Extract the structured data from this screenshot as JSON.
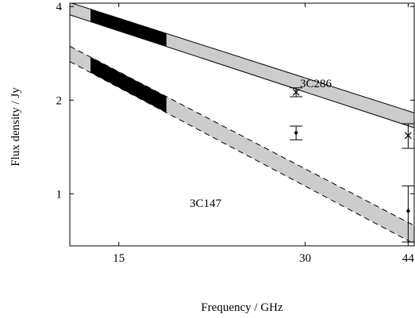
{
  "chart_data": {
    "type": "line",
    "xlabel": "Frequency / GHz",
    "ylabel": "Flux density / Jy",
    "x_scale": "log",
    "y_scale": "log",
    "xlim": [
      12.5,
      45
    ],
    "ylim": [
      0.68,
      4.1
    ],
    "x_ticks": [
      15,
      30,
      44
    ],
    "y_ticks": [
      1,
      2,
      4
    ],
    "colors": {
      "band_fill": "#cccccc",
      "band_highlight": "#000000",
      "line": "#000000"
    },
    "highlight_range_ghz": [
      13.5,
      17.9
    ],
    "series": [
      {
        "name": "3C286",
        "model_band": {
          "x": [
            12.5,
            45
          ],
          "upper": [
            4.12,
            1.82
          ],
          "lower": [
            3.76,
            1.63
          ],
          "edge_style": "solid"
        },
        "measurements": [
          {
            "x": 29.0,
            "y": 2.12,
            "err": 0.07,
            "marker": "x"
          },
          {
            "x": 44.0,
            "y": 1.54,
            "err": 0.14,
            "marker": "x"
          }
        ]
      },
      {
        "name": "3C147",
        "model_band": {
          "x": [
            12.5,
            45
          ],
          "upper": [
            2.98,
            0.79
          ],
          "lower": [
            2.66,
            0.69
          ],
          "edge_style": "dashed"
        },
        "measurements": [
          {
            "x": 29.0,
            "y": 1.57,
            "err": 0.08,
            "marker": "dot"
          },
          {
            "x": 44.0,
            "y": 0.88,
            "err": 0.18,
            "marker": "dot"
          }
        ]
      }
    ]
  }
}
